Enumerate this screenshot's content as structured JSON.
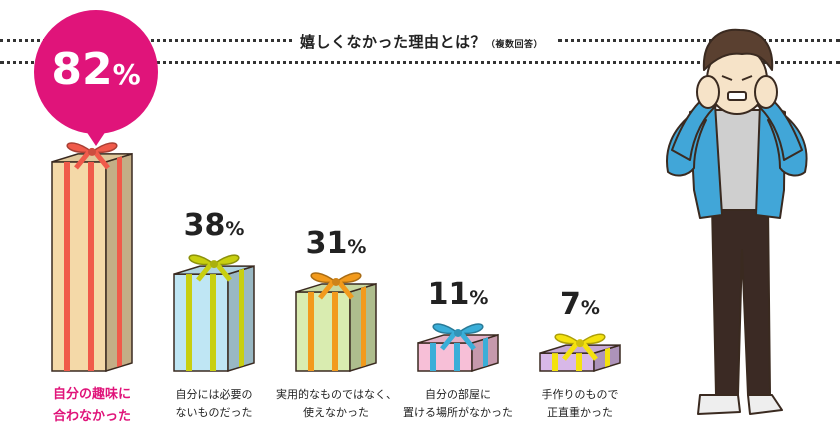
{
  "title": "嬉しくなかった理由とは？",
  "title_note": "（複数回答）",
  "unit": "%",
  "colors": {
    "highlight": "#e0147a",
    "bars": [
      "#f4d9a8",
      "#bfe6f4",
      "#d9ecb0",
      "#f7bfd7",
      "#d8b8e8"
    ],
    "ribbons": [
      "#f05a4a",
      "#c8cf10",
      "#f29a1c",
      "#3aaed8",
      "#f4e20e"
    ]
  },
  "chart_data": {
    "type": "bar",
    "title": "嬉しくなかった理由とは？",
    "subtitle": "（複数回答）",
    "categories": [
      [
        "自分の趣味に",
        "合わなかった"
      ],
      [
        "自分には必要の",
        "ないものだった"
      ],
      [
        "実用的なものではなく、",
        "使えなかった"
      ],
      [
        "自分の部屋に",
        "置ける場所がなかった"
      ],
      [
        "手作りのもので",
        "正直重かった"
      ]
    ],
    "values": [
      82,
      38,
      31,
      11,
      7
    ],
    "value_labels": [
      "82",
      "38",
      "31",
      "11",
      "7"
    ],
    "ylim": [
      0,
      100
    ],
    "highlight_index": 0,
    "grid": false,
    "legend": "none"
  },
  "illustration": {
    "name": "troubled-man-illustration"
  }
}
